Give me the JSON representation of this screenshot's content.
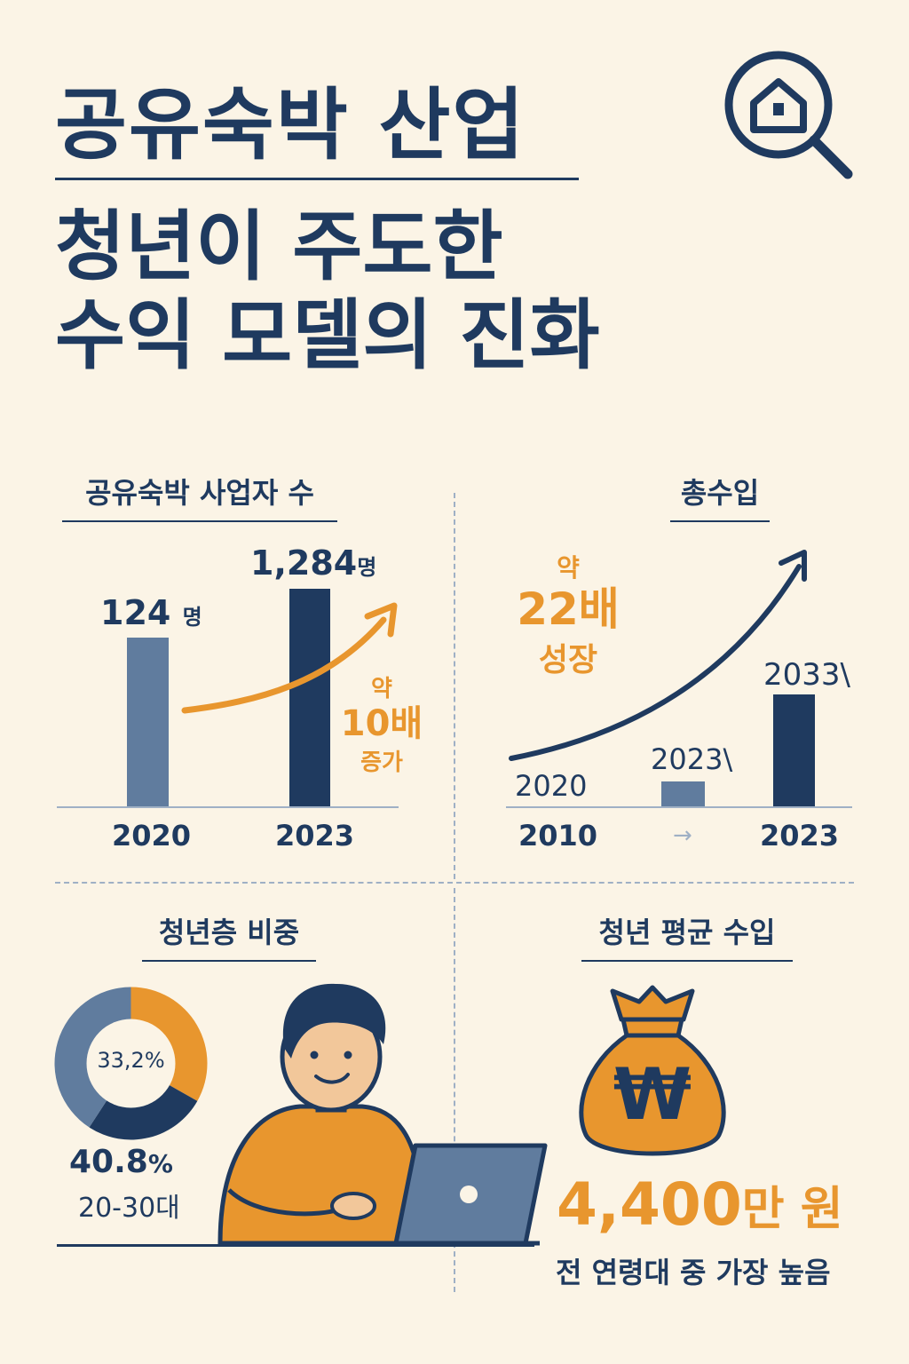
{
  "header": {
    "title": "공유숙박 산업",
    "subtitle_line1": "청년이 주도한",
    "subtitle_line2": "수익 모델의 진화",
    "icon": "house-search-icon"
  },
  "panel_hosts": {
    "title": "공유숙박 사업자 수",
    "value_2020_label": "124",
    "value_2023_label": "1,284",
    "unit": "명",
    "growth_prefix": "약",
    "growth_value": "10배",
    "growth_suffix": "증가"
  },
  "panel_income": {
    "title": "총수입",
    "growth_prefix": "약",
    "growth_value": "22배",
    "growth_suffix": "성장",
    "bar_label_left": "2020",
    "bar_label_mid": "2023\\",
    "bar_label_right": "2033\\",
    "x_labels": [
      "2010",
      "→",
      "2023"
    ]
  },
  "panel_youth_share": {
    "title": "청년층 비중",
    "donut_center": "33,2%",
    "share_value": "40.8",
    "share_unit": "%",
    "age_label": "20-30대"
  },
  "panel_youth_income": {
    "title": "청년 평균 수입",
    "amount": "4,400",
    "amount_unit": "만 원",
    "note": "전 연령대 중 가장 높음",
    "icon": "money-bag-icon",
    "icon_symbol": "₩"
  },
  "colors": {
    "navy": "#1f3a5f",
    "slate": "#607c9e",
    "orange": "#e8962e",
    "background": "#fbf4e6"
  },
  "chart_data": [
    {
      "type": "bar",
      "title": "공유숙박 사업자 수",
      "categories": [
        "2020",
        "2023"
      ],
      "values": [
        124,
        1284
      ],
      "unit": "명",
      "annotation": "약 10배 증가"
    },
    {
      "type": "bar",
      "title": "총수입",
      "categories": [
        "2010",
        "2023"
      ],
      "values": [
        1,
        22
      ],
      "annotation": "약 22배 성장"
    },
    {
      "type": "pie",
      "title": "청년층 비중",
      "slices": [
        {
          "label": "20-30대",
          "value": 40.8
        },
        {
          "label": "",
          "value": 26.0
        },
        {
          "label": "",
          "value": 33.2
        }
      ]
    }
  ]
}
